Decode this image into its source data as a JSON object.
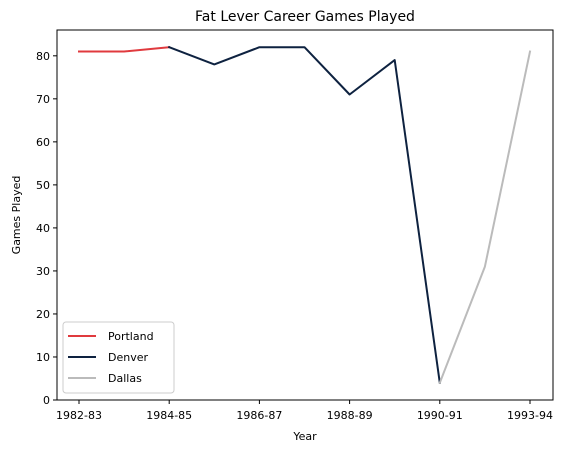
{
  "chart_data": {
    "type": "line",
    "title": "Fat Lever Career Games Played",
    "xlabel": "Year",
    "ylabel": "Games Played",
    "x": [
      "1982-83",
      "1983-84",
      "1984-85",
      "1985-86",
      "1986-87",
      "1987-88",
      "1988-89",
      "1989-90",
      "1990-91",
      "1991-92",
      "1993-94"
    ],
    "xticks": [
      "1982-83",
      "1984-85",
      "1986-87",
      "1988-89",
      "1990-91",
      "1993-94"
    ],
    "ylim": [
      0,
      86
    ],
    "yticks": [
      0,
      10,
      20,
      30,
      40,
      50,
      60,
      70,
      80
    ],
    "grid": false,
    "legend_position": "lower-left",
    "series": [
      {
        "name": "Portland",
        "color": "#e03a3e",
        "x": [
          "1982-83",
          "1983-84",
          "1984-85"
        ],
        "values": [
          81,
          81,
          82
        ]
      },
      {
        "name": "Denver",
        "color": "#0e2240",
        "x": [
          "1984-85",
          "1985-86",
          "1986-87",
          "1987-88",
          "1988-89",
          "1989-90",
          "1990-91"
        ],
        "values": [
          82,
          78,
          82,
          82,
          71,
          79,
          4
        ]
      },
      {
        "name": "Dallas",
        "color": "#bbbbbb",
        "x": [
          "1990-91",
          "1991-92",
          "1993-94"
        ],
        "values": [
          4,
          31,
          81
        ]
      }
    ]
  }
}
